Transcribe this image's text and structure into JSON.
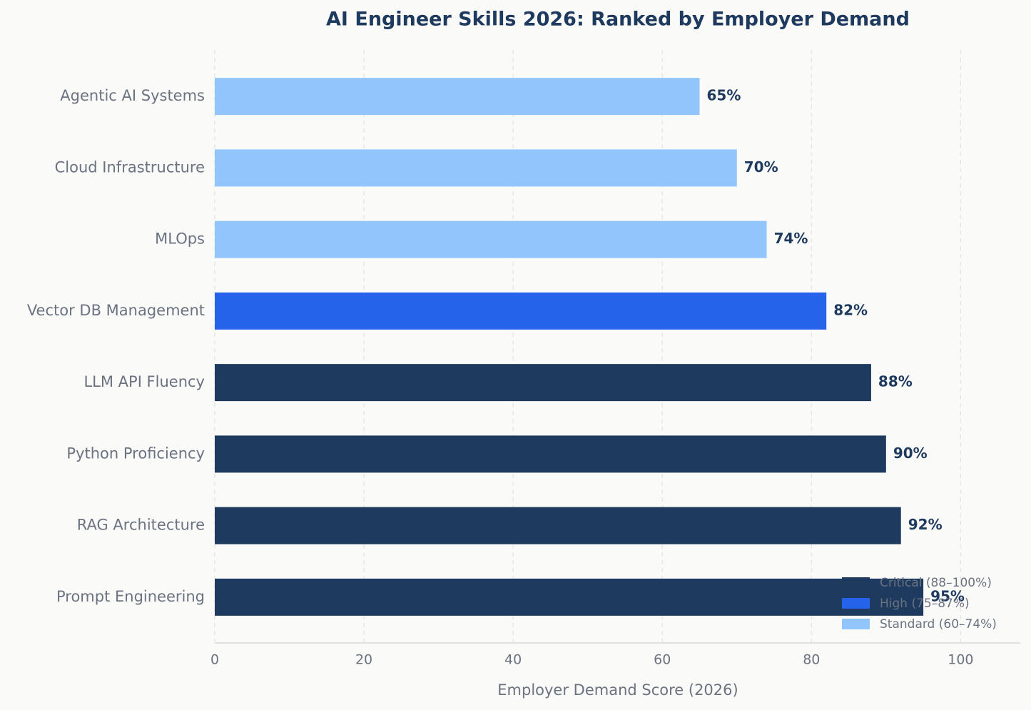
{
  "chart_data": {
    "type": "barh",
    "title": "AI Engineer Skills 2026: Ranked by Employer Demand",
    "xlabel": "Employer Demand Score (2026)",
    "categories": [
      "Agentic AI Systems",
      "Cloud Infrastructure",
      "MLOps",
      "Vector DB Management",
      "LLM API Fluency",
      "Python Proficiency",
      "RAG Architecture",
      "Prompt Engineering"
    ],
    "values": [
      65,
      70,
      74,
      82,
      88,
      90,
      92,
      95
    ],
    "value_labels": [
      "65%",
      "70%",
      "74%",
      "82%",
      "88%",
      "90%",
      "92%",
      "95%"
    ],
    "colors": [
      "#93c5fd",
      "#93c5fd",
      "#93c5fd",
      "#2563eb",
      "#1e3a5f",
      "#1e3a5f",
      "#1e3a5f",
      "#1e3a5f"
    ],
    "xlim": [
      0,
      108
    ],
    "xticks": [
      0,
      20,
      40,
      60,
      80,
      100
    ],
    "grid": true,
    "legend_position": "lower right",
    "legend": [
      {
        "name": "Critical (88–100%)",
        "color": "#1e3a5f"
      },
      {
        "name": "High (75–87%)",
        "color": "#2563eb"
      },
      {
        "name": "Standard (60–74%)",
        "color": "#93c5fd"
      }
    ]
  }
}
